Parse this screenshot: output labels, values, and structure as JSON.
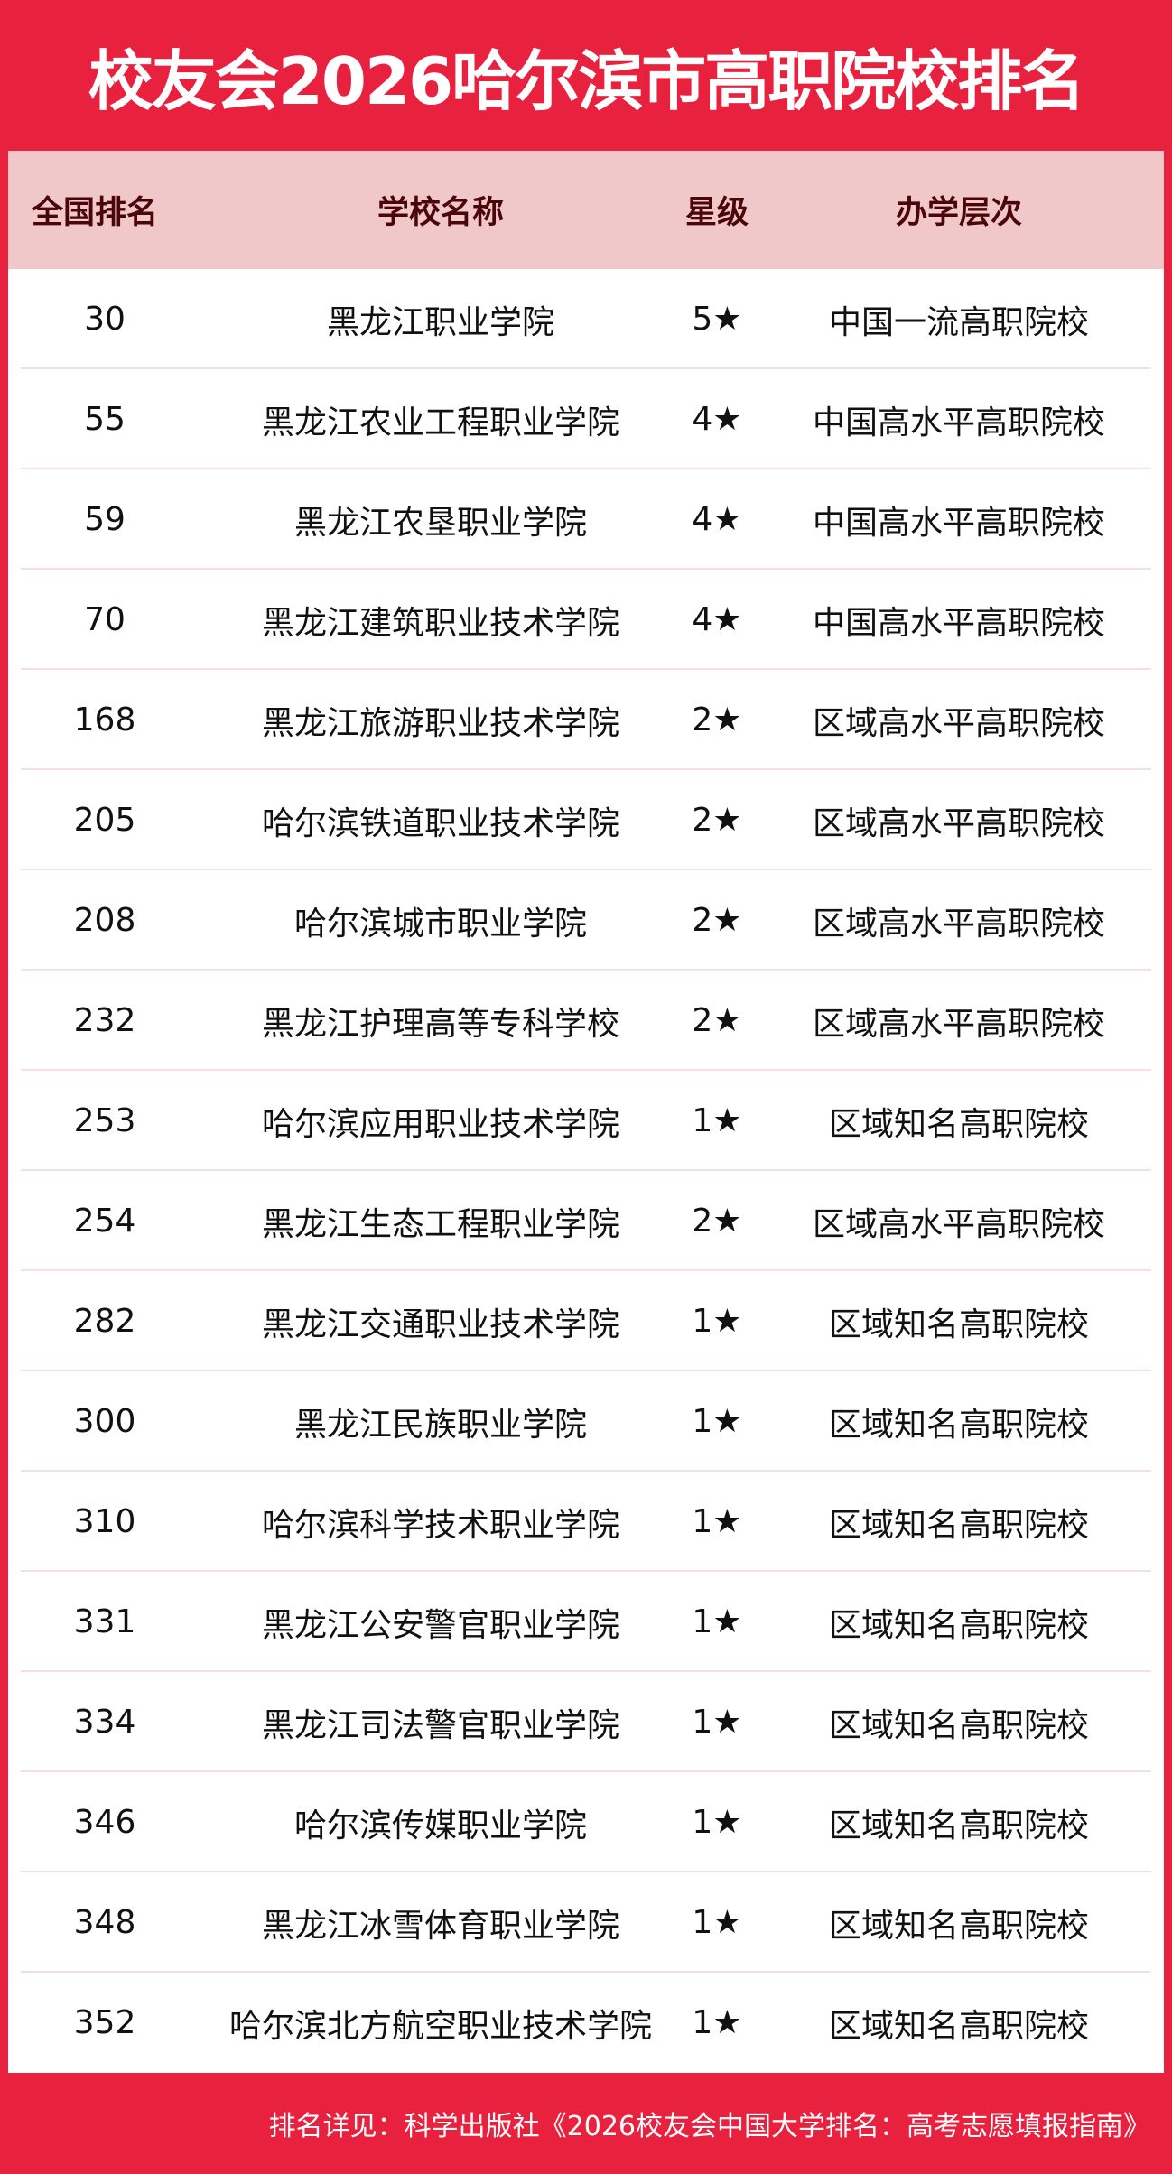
{
  "title": "校友会2026哈尔滨市高职院校排名",
  "columns": [
    "全国排名",
    "学校名称",
    "星级",
    "办学层次"
  ],
  "rows": [
    [
      "30",
      "黑龙江职业学院",
      "5★",
      "中国一流高职院校"
    ],
    [
      "55",
      "黑龙江农业工程职业学院",
      "4★",
      "中国高水平高职院校"
    ],
    [
      "59",
      "黑龙江农垦职业学院",
      "4★",
      "中国高水平高职院校"
    ],
    [
      "70",
      "黑龙江建筑职业技术学院",
      "4★",
      "中国高水平高职院校"
    ],
    [
      "168",
      "黑龙江旅游职业技术学院",
      "2★",
      "区域高水平高职院校"
    ],
    [
      "205",
      "哈尔滨铁道职业技术学院",
      "2★",
      "区域高水平高职院校"
    ],
    [
      "208",
      "哈尔滨城市职业学院",
      "2★",
      "区域高水平高职院校"
    ],
    [
      "232",
      "黑龙江护理高等专科学校",
      "2★",
      "区域高水平高职院校"
    ],
    [
      "253",
      "哈尔滨应用职业技术学院",
      "1★",
      "区域知名高职院校"
    ],
    [
      "254",
      "黑龙江生态工程职业学院",
      "2★",
      "区域高水平高职院校"
    ],
    [
      "282",
      "黑龙江交通职业技术学院",
      "1★",
      "区域知名高职院校"
    ],
    [
      "300",
      "黑龙江民族职业学院",
      "1★",
      "区域知名高职院校"
    ],
    [
      "310",
      "哈尔滨科学技术职业学院",
      "1★",
      "区域知名高职院校"
    ],
    [
      "331",
      "黑龙江公安警官职业学院",
      "1★",
      "区域知名高职院校"
    ],
    [
      "334",
      "黑龙江司法警官职业学院",
      "1★",
      "区域知名高职院校"
    ],
    [
      "346",
      "哈尔滨传媒职业学院",
      "1★",
      "区域知名高职院校"
    ],
    [
      "348",
      "黑龙江冰雪体育职业学院",
      "1★",
      "区域知名高职院校"
    ],
    [
      "352",
      "哈尔滨北方航空职业技术学院",
      "1★",
      "区域知名高职院校"
    ]
  ],
  "footer": "排名详见：科学出版社《2026校友会中国大学排名：高考志愿填报指南》",
  "colors": {
    "brand_red": "#e8213f",
    "header_bg": "#f0c8ca",
    "header_text": "#4a0608"
  }
}
